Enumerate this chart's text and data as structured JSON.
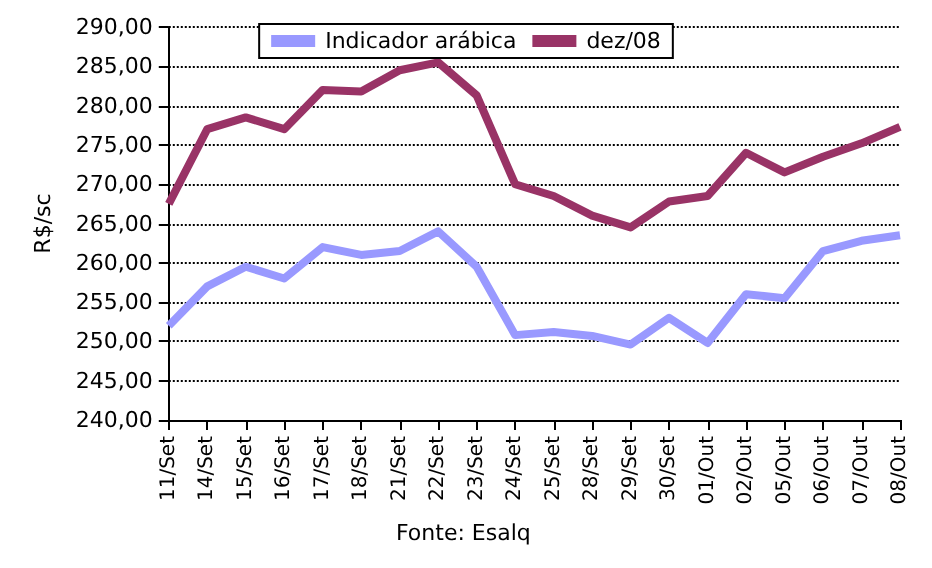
{
  "chart_data": {
    "type": "line",
    "ylabel": "R$/sc",
    "categories": [
      "11/Set",
      "14/Set",
      "15/Set",
      "16/Set",
      "17/Set",
      "18/Set",
      "21/Set",
      "22/Set",
      "23/Set",
      "24/Set",
      "25/Set",
      "28/Set",
      "29/Set",
      "30/Set",
      "01/Out",
      "02/Out",
      "05/Out",
      "06/Out",
      "07/Out",
      "08/Out"
    ],
    "series": [
      {
        "name": "Indicador arábica",
        "color": "#9999ff",
        "values": [
          252,
          257,
          259.5,
          258,
          262,
          261,
          261.5,
          264,
          259.5,
          250.8,
          251.2,
          250.7,
          249.6,
          253,
          249.8,
          256,
          255.5,
          261.5,
          262.8,
          263.5
        ]
      },
      {
        "name": "dez/08",
        "color": "#993366",
        "values": [
          267.5,
          277,
          278.5,
          277,
          282,
          281.8,
          284.5,
          285.5,
          281.3,
          270,
          268.5,
          266,
          264.5,
          267.8,
          268.5,
          274,
          271.5,
          273.5,
          275.2,
          277.3
        ]
      }
    ],
    "ylim": [
      240,
      290
    ],
    "yticks": [
      {
        "value": 240,
        "label": "240,00"
      },
      {
        "value": 245,
        "label": "245,00"
      },
      {
        "value": 250,
        "label": "250,00"
      },
      {
        "value": 255,
        "label": "255,00"
      },
      {
        "value": 260,
        "label": "260,00"
      },
      {
        "value": 265,
        "label": "265,00"
      },
      {
        "value": 270,
        "label": "270,00"
      },
      {
        "value": 275,
        "label": "275,00"
      },
      {
        "value": 280,
        "label": "280,00"
      },
      {
        "value": 285,
        "label": "285,00"
      },
      {
        "value": 290,
        "label": "290,00"
      }
    ],
    "grid": "y",
    "legend": "top",
    "marker": "none",
    "line_style": "solid",
    "annotations": [
      "Fonte: Esalq"
    ]
  }
}
